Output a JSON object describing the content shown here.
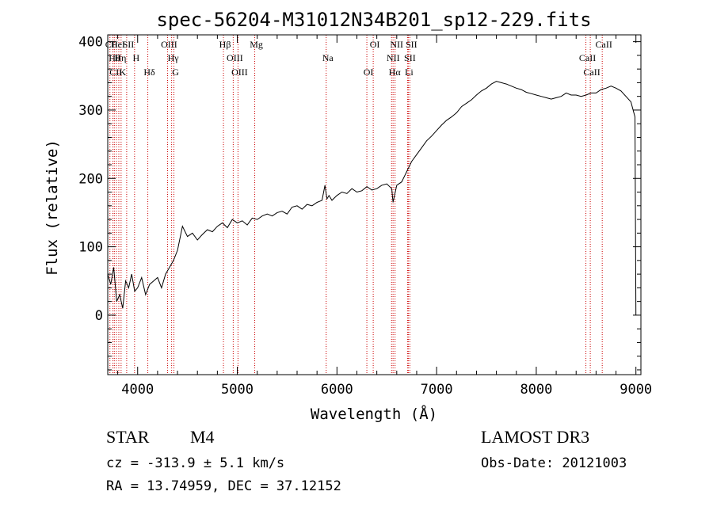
{
  "chart_data": {
    "type": "line",
    "title": "spec-56204-M31012N34B201_sp12-229.fits",
    "xlabel": "Wavelength (Å)",
    "ylabel": "Flux (relative)",
    "xlim": [
      3700,
      9050
    ],
    "ylim": [
      -87,
      410
    ],
    "xticks": [
      4000,
      5000,
      6000,
      7000,
      8000,
      9000
    ],
    "yticks": [
      0,
      100,
      200,
      300,
      400
    ],
    "xtick_labels": [
      "4000",
      "5000",
      "6000",
      "7000",
      "8000",
      "9000"
    ],
    "ytick_labels": [
      "0",
      "100",
      "200",
      "300",
      "400"
    ],
    "series": [
      {
        "name": "flux",
        "x": [
          3700,
          3730,
          3760,
          3790,
          3820,
          3850,
          3880,
          3910,
          3940,
          3970,
          4000,
          4040,
          4080,
          4120,
          4160,
          4200,
          4240,
          4280,
          4320,
          4360,
          4400,
          4450,
          4500,
          4550,
          4600,
          4650,
          4700,
          4750,
          4800,
          4850,
          4900,
          4950,
          5000,
          5050,
          5100,
          5150,
          5200,
          5250,
          5300,
          5350,
          5400,
          5450,
          5500,
          5550,
          5600,
          5650,
          5700,
          5750,
          5800,
          5850,
          5880,
          5900,
          5920,
          5950,
          6000,
          6050,
          6100,
          6150,
          6200,
          6250,
          6300,
          6350,
          6400,
          6450,
          6500,
          6550,
          6563,
          6600,
          6650,
          6700,
          6750,
          6800,
          6850,
          6900,
          6950,
          7000,
          7050,
          7100,
          7150,
          7200,
          7250,
          7300,
          7350,
          7400,
          7450,
          7500,
          7550,
          7600,
          7650,
          7700,
          7750,
          7800,
          7850,
          7900,
          7950,
          8000,
          8050,
          8100,
          8150,
          8200,
          8250,
          8300,
          8350,
          8400,
          8450,
          8500,
          8550,
          8600,
          8650,
          8700,
          8750,
          8800,
          8850,
          8900,
          8950,
          8990,
          9000
        ],
        "y": [
          60,
          45,
          70,
          20,
          30,
          10,
          50,
          40,
          60,
          35,
          40,
          55,
          30,
          45,
          50,
          55,
          40,
          60,
          70,
          80,
          95,
          130,
          115,
          120,
          110,
          118,
          125,
          122,
          130,
          135,
          128,
          140,
          135,
          138,
          132,
          142,
          140,
          145,
          148,
          145,
          150,
          152,
          148,
          158,
          160,
          155,
          162,
          160,
          165,
          168,
          190,
          170,
          175,
          168,
          175,
          180,
          178,
          185,
          180,
          182,
          188,
          183,
          185,
          190,
          192,
          185,
          165,
          190,
          195,
          210,
          225,
          235,
          245,
          255,
          262,
          270,
          278,
          285,
          290,
          296,
          305,
          310,
          315,
          322,
          328,
          332,
          338,
          342,
          340,
          338,
          335,
          332,
          330,
          326,
          324,
          322,
          320,
          318,
          316,
          318,
          320,
          325,
          322,
          322,
          320,
          322,
          325,
          325,
          330,
          332,
          335,
          332,
          328,
          320,
          312,
          290,
          0
        ]
      }
    ],
    "line_markers": [
      {
        "label": "CII",
        "wavelength": 3722
      },
      {
        "label": "Hθ",
        "wavelength": 3751
      },
      {
        "label": "CII",
        "wavelength": 3766
      },
      {
        "label": "HeI",
        "wavelength": 3787
      },
      {
        "label": "Hη",
        "wavelength": 3811
      },
      {
        "label": "K",
        "wavelength": 3834
      },
      {
        "label": "SII",
        "wavelength": 3890
      },
      {
        "label": "H",
        "wavelength": 3969
      },
      {
        "label": "Hδ",
        "wavelength": 4102
      },
      {
        "label": "OIII",
        "wavelength": 4300
      },
      {
        "label": "Hγ",
        "wavelength": 4341
      },
      {
        "label": "G",
        "wavelength": 4364
      },
      {
        "label": "Hβ",
        "wavelength": 4861
      },
      {
        "label": "OIII",
        "wavelength": 4959
      },
      {
        "label": "OIII",
        "wavelength": 5007
      },
      {
        "label": "Mg",
        "wavelength": 5175
      },
      {
        "label": "Na",
        "wavelength": 5892
      },
      {
        "label": "OI",
        "wavelength": 6300
      },
      {
        "label": "OI",
        "wavelength": 6364
      },
      {
        "label": "NII",
        "wavelength": 6548
      },
      {
        "label": "Hα",
        "wavelength": 6563
      },
      {
        "label": "NII",
        "wavelength": 6583
      },
      {
        "label": "SII",
        "wavelength": 6716
      },
      {
        "label": "Li",
        "wavelength": 6708
      },
      {
        "label": "SII",
        "wavelength": 6731
      },
      {
        "label": "CaII",
        "wavelength": 8498
      },
      {
        "label": "CaII",
        "wavelength": 8542
      },
      {
        "label": "CaII",
        "wavelength": 8662
      }
    ],
    "line_marker_color": "#cc0000",
    "grid": false
  },
  "info": {
    "object_type": "STAR",
    "subclass": "M4",
    "survey": "LAMOST DR3",
    "redshift_text": "cz = -313.9 ± 5.1 km/s",
    "obs_date_text": "Obs-Date: 20121003",
    "coords_text": "RA =  13.74959, DEC =  37.12152"
  }
}
